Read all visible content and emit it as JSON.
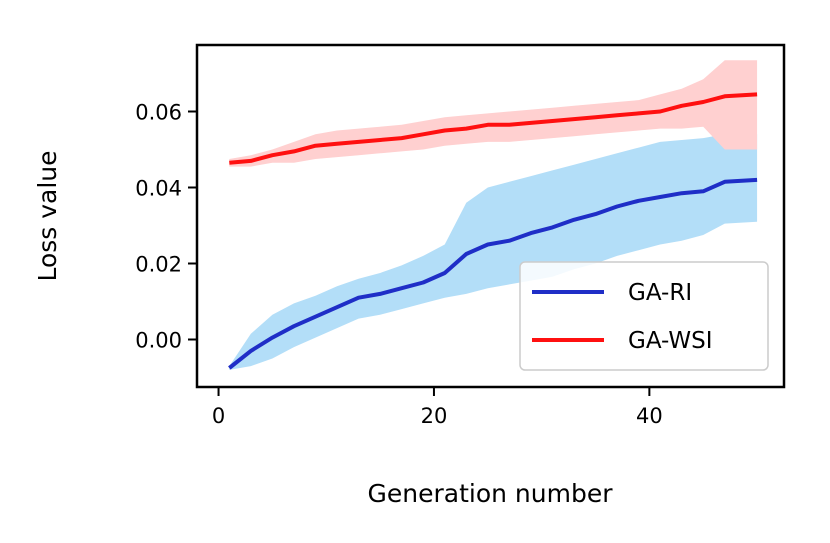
{
  "chart_data": {
    "type": "line",
    "title": "",
    "xlabel": "Generation number",
    "ylabel": "Loss value",
    "xlim": [
      -2,
      52.5
    ],
    "ylim": [
      -0.0125,
      0.0775
    ],
    "x_ticks": [
      0,
      20,
      40
    ],
    "x_tick_labels": [
      "0",
      "20",
      "40"
    ],
    "y_ticks": [
      0.0,
      0.02,
      0.04,
      0.06
    ],
    "y_tick_labels": [
      "0.00",
      "0.02",
      "0.04",
      "0.06"
    ],
    "grid": false,
    "legend_position": "lower-right",
    "x": [
      1,
      3,
      5,
      7,
      9,
      11,
      13,
      15,
      17,
      19,
      21,
      23,
      25,
      27,
      29,
      31,
      33,
      35,
      37,
      39,
      41,
      43,
      45,
      47,
      50
    ],
    "series": [
      {
        "name": "GA-RI",
        "color": "#1f2ec7",
        "band_color": "#b3def8",
        "values": [
          -0.0075,
          -0.003,
          0.0005,
          0.0035,
          0.006,
          0.0085,
          0.011,
          0.012,
          0.0135,
          0.015,
          0.0175,
          0.0225,
          0.025,
          0.026,
          0.028,
          0.0295,
          0.0315,
          0.033,
          0.035,
          0.0365,
          0.0375,
          0.0385,
          0.039,
          0.0415,
          0.042
        ],
        "upper": [
          -0.007,
          0.0015,
          0.0065,
          0.0095,
          0.0115,
          0.014,
          0.016,
          0.0175,
          0.0195,
          0.022,
          0.025,
          0.036,
          0.04,
          0.0415,
          0.043,
          0.0445,
          0.046,
          0.0475,
          0.049,
          0.0505,
          0.052,
          0.0525,
          0.053,
          0.054,
          0.054
        ],
        "lower": [
          -0.008,
          -0.007,
          -0.005,
          -0.002,
          0.0005,
          0.003,
          0.0055,
          0.0065,
          0.008,
          0.0095,
          0.011,
          0.012,
          0.0135,
          0.0145,
          0.0155,
          0.0165,
          0.0185,
          0.02,
          0.022,
          0.0235,
          0.025,
          0.026,
          0.0275,
          0.0305,
          0.031
        ]
      },
      {
        "name": "GA-WSI",
        "color": "#ff1010",
        "band_color": "#ffd0d0",
        "values": [
          0.0465,
          0.047,
          0.0485,
          0.0495,
          0.051,
          0.0515,
          0.052,
          0.0525,
          0.053,
          0.054,
          0.055,
          0.0555,
          0.0565,
          0.0565,
          0.057,
          0.0575,
          0.058,
          0.0585,
          0.059,
          0.0595,
          0.06,
          0.0615,
          0.0625,
          0.064,
          0.0645
        ],
        "upper": [
          0.0475,
          0.0485,
          0.05,
          0.052,
          0.054,
          0.055,
          0.0555,
          0.056,
          0.0565,
          0.0575,
          0.0585,
          0.059,
          0.0595,
          0.06,
          0.0605,
          0.061,
          0.0615,
          0.062,
          0.0625,
          0.063,
          0.0645,
          0.066,
          0.0685,
          0.0735,
          0.0735
        ],
        "lower": [
          0.0455,
          0.0455,
          0.0465,
          0.0465,
          0.0475,
          0.048,
          0.0485,
          0.049,
          0.0495,
          0.05,
          0.051,
          0.0515,
          0.052,
          0.052,
          0.0525,
          0.053,
          0.0535,
          0.054,
          0.0545,
          0.055,
          0.0555,
          0.0555,
          0.056,
          0.05,
          0.05
        ]
      }
    ]
  }
}
